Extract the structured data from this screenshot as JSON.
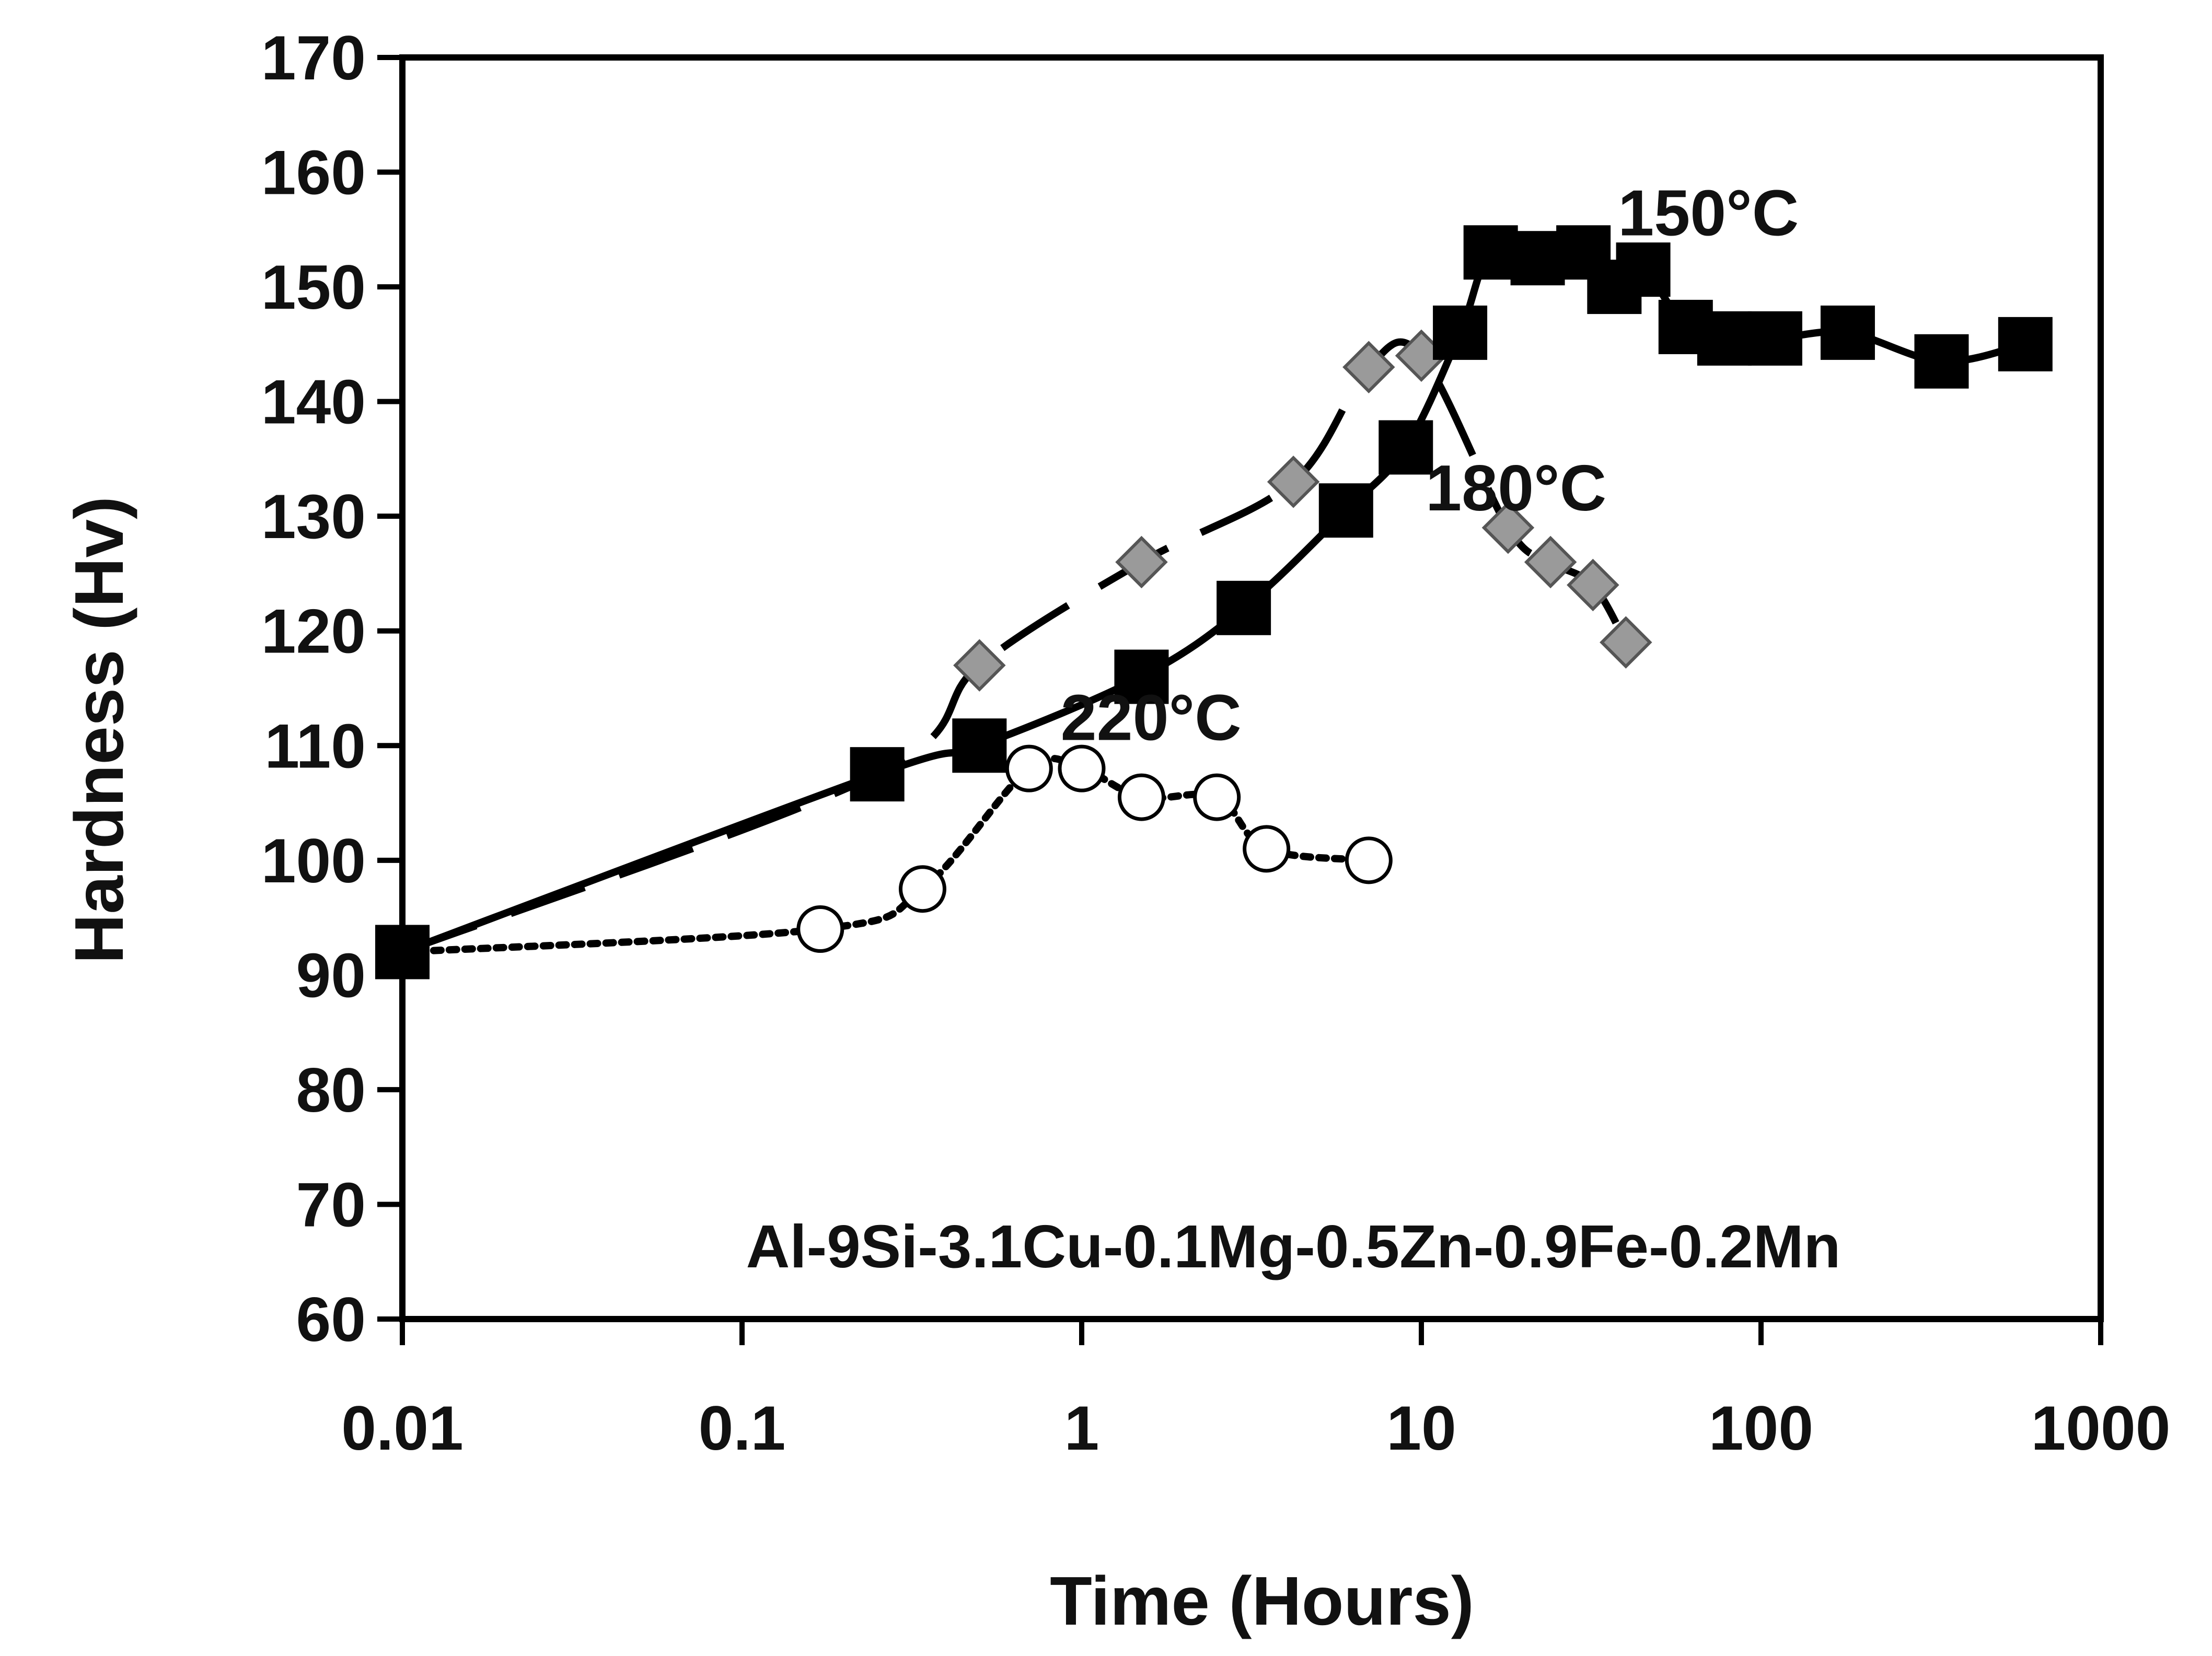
{
  "chart_data": {
    "type": "line",
    "xlabel": "Time (Hours)",
    "ylabel": "Hardness (Hv)",
    "xscale": "log",
    "xlim": [
      0.01,
      1000
    ],
    "ylim": [
      60,
      170
    ],
    "xticks": [
      0.01,
      0.1,
      1,
      10,
      100,
      1000
    ],
    "xtick_labels": [
      "0.01",
      "0.1",
      "1",
      "10",
      "100",
      "1000"
    ],
    "yticks": [
      60,
      70,
      80,
      90,
      100,
      110,
      120,
      130,
      140,
      150,
      160,
      170
    ],
    "grid": false,
    "annotation": "Al-9Si-3.1Cu-0.1Mg-0.5Zn-0.9Fe-0.2Mn",
    "series": [
      {
        "name": "150°C",
        "marker": "filled-square",
        "line_style": "solid",
        "color": "#000000",
        "x": [
          0.01,
          0.25,
          0.5,
          1.5,
          3,
          6,
          9,
          13,
          16,
          22,
          30,
          37,
          45,
          60,
          78,
          110,
          180,
          340,
          600
        ],
        "y": [
          92,
          107.5,
          110,
          116,
          122,
          130.5,
          136,
          146,
          153,
          152.5,
          153,
          150,
          151.5,
          146.5,
          145.5,
          145.5,
          146,
          143.5,
          145
        ]
      },
      {
        "name": "180°C",
        "marker": "gray-diamond",
        "line_style": "long-dash",
        "color": "#9a9a9a",
        "x": [
          0.01,
          0.25,
          0.5,
          1.5,
          4.2,
          7,
          10,
          18,
          24,
          32,
          40
        ],
        "y": [
          92,
          107.5,
          117,
          126,
          133,
          143,
          144,
          129,
          126,
          124,
          119
        ]
      },
      {
        "name": "220°C",
        "marker": "open-circle",
        "line_style": "dotted",
        "color": "#000000",
        "x": [
          0.01,
          0.17,
          0.34,
          0.7,
          1,
          1.5,
          2.5,
          3.5,
          7
        ],
        "y": [
          92,
          94,
          97.5,
          108,
          108,
          105.5,
          105.5,
          101,
          100
        ]
      }
    ],
    "series_labels": [
      {
        "text": "150°C",
        "x": 70,
        "y": 154.5
      },
      {
        "text": "180°C",
        "x": 19,
        "y": 130.5
      },
      {
        "text": "220°C",
        "x": 1.6,
        "y": 110.5
      }
    ]
  }
}
